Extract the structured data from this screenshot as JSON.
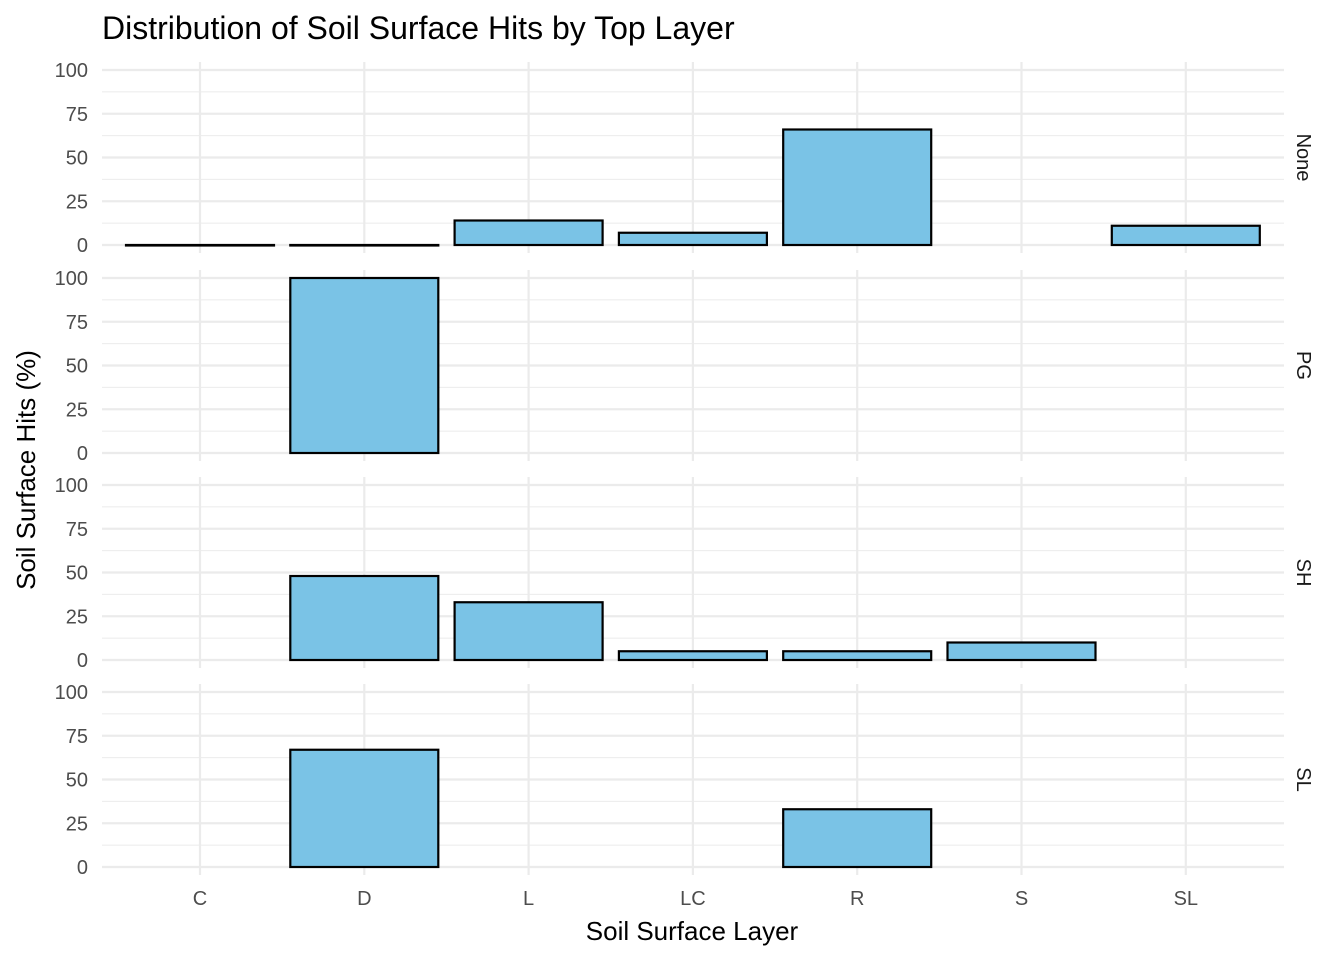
{
  "chart_data": {
    "type": "bar",
    "title": "Distribution of Soil Surface Hits by Top Layer",
    "xlabel": "Soil Surface Layer",
    "ylabel": "Soil Surface Hits (%)",
    "categories": [
      "C",
      "D",
      "L",
      "LC",
      "R",
      "S",
      "SL"
    ],
    "ylim": [
      0,
      100
    ],
    "yticks": [
      0,
      25,
      50,
      75,
      100
    ],
    "yticklabels": [
      "0",
      "25",
      "50",
      "75",
      "100"
    ],
    "facets": [
      {
        "name": "None",
        "values": [
          0,
          0,
          14,
          7,
          66,
          null,
          11
        ]
      },
      {
        "name": "PG",
        "values": [
          null,
          100,
          null,
          null,
          null,
          null,
          null
        ]
      },
      {
        "name": "SH",
        "values": [
          null,
          48,
          33,
          5,
          5,
          10,
          null
        ]
      },
      {
        "name": "SL",
        "values": [
          null,
          67,
          null,
          null,
          33,
          null,
          null
        ]
      }
    ],
    "bar_fill": "#7ac3e6",
    "bar_outline": "#000000",
    "grid": true,
    "legend": "none"
  }
}
